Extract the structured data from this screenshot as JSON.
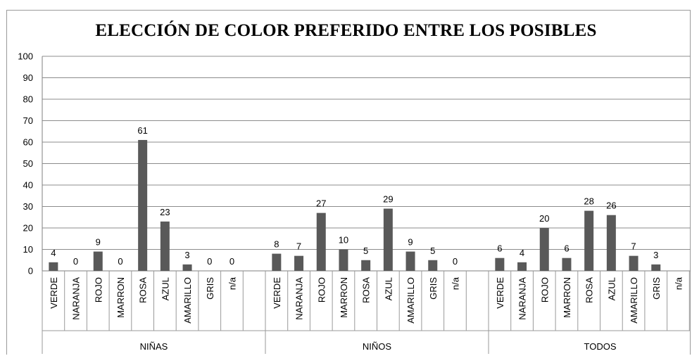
{
  "chart_data": {
    "type": "bar",
    "title": "ELECCIÓN DE COLOR PREFERIDO ENTRE LOS POSIBLES",
    "xlabel": "",
    "ylabel": "",
    "ylim": [
      0,
      100
    ],
    "yticks": [
      0,
      10,
      20,
      30,
      40,
      50,
      60,
      70,
      80,
      90,
      100
    ],
    "grid": true,
    "bar_color": "#595959",
    "grid_color": "#8c8c8c",
    "groups": [
      {
        "name": "NIÑAS",
        "categories": [
          "VERDE",
          "NARANJA",
          "ROJO",
          "MARRON",
          "ROSA",
          "AZUL",
          "AMARILLO",
          "GRIS",
          "n/a"
        ],
        "values": [
          4,
          0,
          9,
          0,
          61,
          23,
          3,
          0,
          0
        ],
        "labels": [
          "4",
          "0",
          "9",
          "0",
          "61",
          "23",
          "3",
          "0",
          "0"
        ]
      },
      {
        "name": "NIÑOS",
        "categories": [
          "VERDE",
          "NARANJA",
          "ROJO",
          "MARRON",
          "ROSA",
          "AZUL",
          "AMARILLO",
          "GRIS",
          "n/a"
        ],
        "values": [
          8,
          7,
          27,
          10,
          5,
          29,
          9,
          5,
          0
        ],
        "labels": [
          "8",
          "7",
          "27",
          "10",
          "5",
          "29",
          "9",
          "5",
          "0"
        ]
      },
      {
        "name": "TODOS",
        "categories": [
          "VERDE",
          "NARANJA",
          "ROJO",
          "MARRON",
          "ROSA",
          "AZUL",
          "AMARILLO",
          "GRIS",
          "n/a"
        ],
        "values": [
          6,
          4,
          20,
          6,
          28,
          26,
          7,
          3,
          0
        ],
        "labels": [
          "6",
          "4",
          "20",
          "6",
          "28",
          "26",
          "7",
          "3",
          ""
        ]
      }
    ]
  }
}
